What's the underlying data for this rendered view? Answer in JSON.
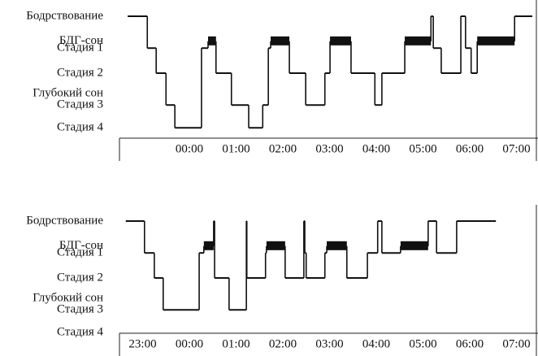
{
  "chart_data": [
    {
      "type": "step",
      "ylim": [
        0,
        5
      ],
      "yticks": [
        {
          "value": 0,
          "label": "Бодрствование"
        },
        {
          "value": 1.1,
          "label": "БДГ-сон"
        },
        {
          "value": 1.4,
          "label": "Стадия 1"
        },
        {
          "value": 2.5,
          "label": "Стадия 2"
        },
        {
          "value": 3.4,
          "label": "Глубокий сон"
        },
        {
          "value": 3.9,
          "label": "Стадия 3"
        },
        {
          "value": 4.9,
          "label": "Стадия 4"
        }
      ],
      "xlim": [
        -1.4,
        7.4
      ],
      "xticks": [
        {
          "value": 0,
          "label": "00:00"
        },
        {
          "value": 1,
          "label": "01:00"
        },
        {
          "value": 2,
          "label": "02:00"
        },
        {
          "value": 3,
          "label": "03:00"
        },
        {
          "value": 4,
          "label": "04:00"
        },
        {
          "value": 5,
          "label": "05:00"
        },
        {
          "value": 6,
          "label": "06:00"
        },
        {
          "value": 7,
          "label": "07:00"
        }
      ],
      "series": [
        {
          "color": "#111111",
          "x": [
            -1.32,
            -0.9,
            -0.71,
            -0.5,
            -0.31,
            0.26,
            0.4,
            0.57,
            0.9,
            1.27,
            1.57,
            1.69,
            1.74,
            2.14,
            2.49,
            2.9,
            3.01,
            3.46,
            3.97,
            4.12,
            4.61,
            5.17,
            5.22,
            5.39,
            5.81,
            5.91,
            6.03,
            6.16,
            6.96,
            7.34
          ],
          "values": [
            0,
            1.4,
            2.5,
            3.9,
            4.9,
            1.4,
            1.1,
            2.5,
            3.9,
            4.9,
            3.9,
            1.4,
            1.1,
            2.5,
            3.9,
            2.5,
            1.1,
            2.5,
            3.9,
            2.5,
            1.1,
            0,
            1.4,
            2.5,
            0,
            1.4,
            2.5,
            1.1,
            0,
            0
          ]
        }
      ]
    },
    {
      "type": "step",
      "ylim": [
        0,
        5
      ],
      "yticks": [
        {
          "value": 0,
          "label": "Бодрствование"
        },
        {
          "value": 1.1,
          "label": "БДГ-сон"
        },
        {
          "value": 1.4,
          "label": "Стадия 1"
        },
        {
          "value": 2.5,
          "label": "Стадия 2"
        },
        {
          "value": 3.4,
          "label": "Глубокий сон"
        },
        {
          "value": 3.9,
          "label": "Стадия 3"
        },
        {
          "value": 4.9,
          "label": "Стадия 4"
        }
      ],
      "xlim": [
        -1.4,
        7.4
      ],
      "xticks": [
        {
          "value": -1,
          "label": "23:00"
        },
        {
          "value": 0,
          "label": "00:00"
        },
        {
          "value": 1,
          "label": "01:00"
        },
        {
          "value": 2,
          "label": "02:00"
        },
        {
          "value": 3,
          "label": "03:00"
        },
        {
          "value": 4,
          "label": "04:00"
        },
        {
          "value": 5,
          "label": "05:00"
        },
        {
          "value": 6,
          "label": "06:00"
        },
        {
          "value": 7,
          "label": "07:00"
        }
      ],
      "series": [
        {
          "color": "#111111",
          "x": [
            -1.36,
            -0.96,
            -0.75,
            -0.56,
            0.21,
            0.31,
            0.52,
            0.54,
            0.85,
            1.22,
            1.23,
            1.63,
            1.65,
            2.05,
            2.45,
            2.47,
            2.5,
            2.9,
            2.94,
            3.37,
            3.81,
            4.03,
            4.12,
            4.52,
            5.11,
            5.29,
            5.72,
            6.56
          ],
          "values": [
            0,
            1.4,
            2.5,
            3.9,
            1.4,
            1.1,
            0,
            2.5,
            3.9,
            0,
            2.5,
            1.4,
            1.1,
            2.5,
            0,
            1.4,
            2.5,
            1.4,
            1.1,
            2.5,
            1.4,
            0,
            1.4,
            1.1,
            0,
            1.4,
            0,
            0
          ]
        }
      ]
    }
  ]
}
